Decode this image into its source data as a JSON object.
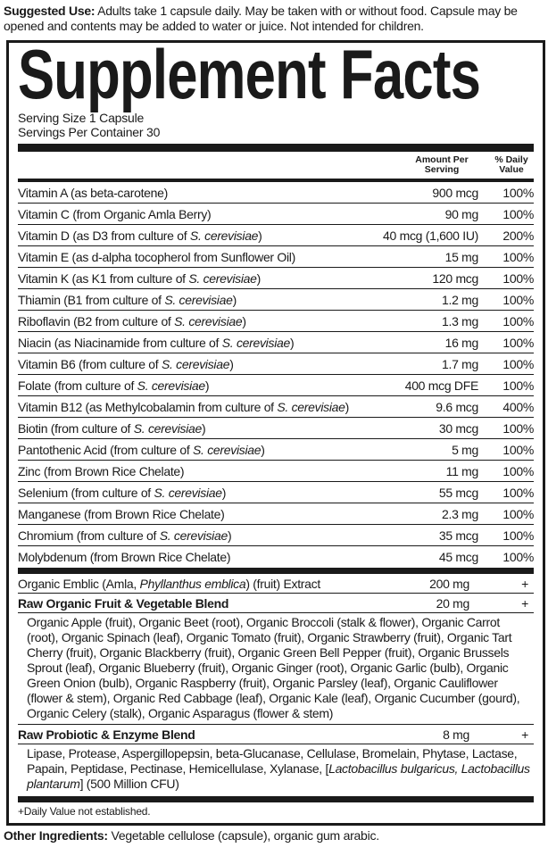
{
  "suggested_use": {
    "label": "Suggested Use:",
    "text": " Adults take 1 capsule daily. May be taken with or without food. Capsule may be opened and contents may be added to water or juice. Not intended for children."
  },
  "title": "Supplement Facts",
  "serving_size": "Serving Size 1 Capsule",
  "servings_per_container": "Servings Per Container 30",
  "header": {
    "amount": "Amount Per Serving",
    "daily_value": "% Daily Value"
  },
  "nutrients": [
    {
      "name": "Vitamin A (as beta-carotene)",
      "italic": "",
      "suffix": "",
      "amount": "900 mcg",
      "dv": "100%"
    },
    {
      "name": "Vitamin C (from Organic Amla Berry)",
      "italic": "",
      "suffix": "",
      "amount": "90 mg",
      "dv": "100%"
    },
    {
      "name": "Vitamin D (as D3 from culture of ",
      "italic": "S. cerevisiae",
      "suffix": ")",
      "amount": "40 mcg (1,600 IU)",
      "dv": "200%"
    },
    {
      "name": "Vitamin E (as d-alpha tocopherol from Sunflower Oil)",
      "italic": "",
      "suffix": "",
      "amount": "15 mg",
      "dv": "100%"
    },
    {
      "name": "Vitamin K (as K1 from culture of ",
      "italic": "S. cerevisiae",
      "suffix": ")",
      "amount": "120 mcg",
      "dv": "100%"
    },
    {
      "name": "Thiamin (B1 from culture of ",
      "italic": "S. cerevisiae",
      "suffix": ")",
      "amount": "1.2 mg",
      "dv": "100%"
    },
    {
      "name": "Riboflavin (B2 from culture of ",
      "italic": "S. cerevisiae",
      "suffix": ")",
      "amount": "1.3 mg",
      "dv": "100%"
    },
    {
      "name": "Niacin (as Niacinamide from culture of ",
      "italic": "S. cerevisiae",
      "suffix": ")",
      "amount": "16 mg",
      "dv": "100%"
    },
    {
      "name": "Vitamin B6 (from culture of ",
      "italic": "S. cerevisiae",
      "suffix": ")",
      "amount": "1.7 mg",
      "dv": "100%"
    },
    {
      "name": "Folate (from culture of ",
      "italic": "S. cerevisiae",
      "suffix": ")",
      "amount": "400 mcg DFE",
      "dv": "100%"
    },
    {
      "name": "Vitamin B12 (as Methylcobalamin from culture of ",
      "italic": "S. cerevisiae",
      "suffix": ")",
      "amount": "9.6 mcg",
      "dv": "400%"
    },
    {
      "name": "Biotin (from culture of ",
      "italic": "S. cerevisiae",
      "suffix": ")",
      "amount": "30 mcg",
      "dv": "100%"
    },
    {
      "name": "Pantothenic Acid (from culture of ",
      "italic": "S. cerevisiae",
      "suffix": ")",
      "amount": "5 mg",
      "dv": "100%"
    },
    {
      "name": "Zinc (from Brown Rice Chelate)",
      "italic": "",
      "suffix": "",
      "amount": "11 mg",
      "dv": "100%"
    },
    {
      "name": "Selenium (from culture of ",
      "italic": "S. cerevisiae",
      "suffix": ")",
      "amount": "55 mcg",
      "dv": "100%"
    },
    {
      "name": "Manganese (from Brown Rice Chelate)",
      "italic": "",
      "suffix": "",
      "amount": "2.3 mg",
      "dv": "100%"
    },
    {
      "name": "Chromium (from culture of ",
      "italic": "S. cerevisiae",
      "suffix": ")",
      "amount": "35 mcg",
      "dv": "100%"
    },
    {
      "name": "Molybdenum (from Brown Rice Chelate)",
      "italic": "",
      "suffix": "",
      "amount": "45 mcg",
      "dv": "100%"
    }
  ],
  "emblic": {
    "name": "Organic Emblic (Amla, ",
    "italic": "Phyllanthus emblica",
    "suffix": ") (fruit) Extract",
    "amount": "200 mg",
    "dv": "+"
  },
  "fruit_blend": {
    "name": "Raw Organic Fruit & Vegetable Blend",
    "amount": "20 mg",
    "dv": "+",
    "ingredients": "Organic Apple (fruit), Organic Beet (root), Organic Broccoli (stalk & flower), Organic Carrot (root), Organic Spinach (leaf), Organic Tomato (fruit), Organic Strawberry (fruit), Organic Tart Cherry (fruit), Organic Blackberry (fruit), Organic Green Bell Pepper (fruit), Organic Brussels Sprout (leaf), Organic Blueberry (fruit), Organic Ginger (root), Organic Garlic (bulb), Organic Green Onion (bulb), Organic Raspberry (fruit), Organic Parsley (leaf), Organic Cauliflower (flower & stem), Organic Red Cabbage (leaf), Organic Kale (leaf), Organic Cucumber (gourd), Organic Celery (stalk), Organic Asparagus (flower & stem)"
  },
  "probiotic_blend": {
    "name": "Raw Probiotic & Enzyme Blend",
    "amount": "8 mg",
    "dv": "+",
    "ingredients": "Lipase, Protease, Aspergillopepsin, beta-Glucanase, Cellulase, Bromelain, Phytase, Lactase, Papain, Peptidase, Pectinase, Hemicellulase, Xylanase, ",
    "open_bracket": "[",
    "italic": "Lactobacillus bulgaricus, Lactobacillus plantarum",
    "suffix": "] (500 Million CFU)"
  },
  "footnote": "+Daily Value not established.",
  "other_ingredients": {
    "label": "Other Ingredients:",
    "text": " Vegetable cellulose (capsule), organic gum arabic."
  }
}
